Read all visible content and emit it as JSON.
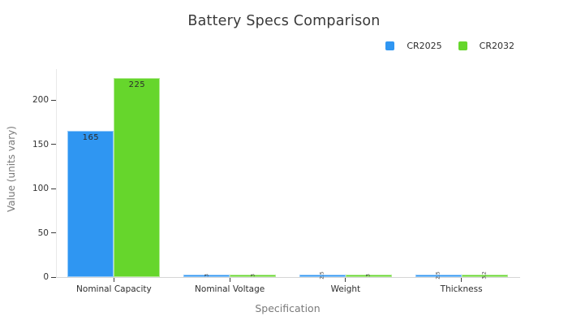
{
  "chart_data": {
    "type": "bar",
    "title": "Battery Specs Comparison",
    "categories": [
      "Nominal Capacity",
      "Nominal Voltage",
      "Weight",
      "Thickness"
    ],
    "series": [
      {
        "name": "CR2025",
        "color": "#2f96f2",
        "values": [
          165,
          3,
          2.5,
          2.5
        ]
      },
      {
        "name": "CR2032",
        "color": "#66d62c",
        "values": [
          225,
          3,
          3,
          3.2
        ]
      }
    ],
    "xlabel": "Specification",
    "ylabel": "Value (units vary)",
    "yticks": [
      0,
      50,
      100,
      150,
      200
    ],
    "ylim": [
      0,
      235
    ],
    "grid": false,
    "legend_position": "top-right",
    "bar_value_labels": true
  },
  "colors": {
    "background": "#ffffff",
    "title_text": "#3a3a3a",
    "tick_label_text": "#333333",
    "axis_title_text": "#7a7a7a",
    "axis_line": "#d6d6d6",
    "tick_mark": "#3c3c3c"
  }
}
